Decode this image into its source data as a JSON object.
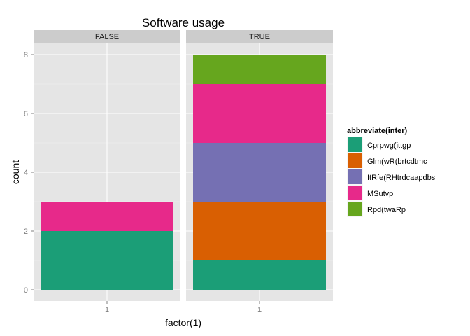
{
  "chart_data": {
    "type": "bar",
    "stacked": true,
    "title": "Software usage",
    "xlabel": "factor(1)",
    "ylabel": "count",
    "ylim": [
      0,
      8
    ],
    "yticks": [
      "0",
      "2",
      "4",
      "6",
      "8"
    ],
    "facets": [
      {
        "label": "FALSE",
        "categories": [
          "1"
        ],
        "stack": [
          {
            "series": "Cprpwg(ittgp",
            "value": 2
          },
          {
            "series": "MSutvp",
            "value": 1
          }
        ]
      },
      {
        "label": "TRUE",
        "categories": [
          "1"
        ],
        "stack": [
          {
            "series": "Cprpwg(ittgp",
            "value": 1
          },
          {
            "series": "Glm(wR(brtcdtmc",
            "value": 2
          },
          {
            "series": "ItRfe(RHtrdcaapdbs",
            "value": 2
          },
          {
            "series": "MSutvp",
            "value": 2
          },
          {
            "series": "Rpd(twaRp",
            "value": 1
          }
        ]
      }
    ],
    "legend": {
      "title": "abbreviate(inter)",
      "position": "right",
      "entries": [
        {
          "name": "Cprpwg(ittgp",
          "color": "#1b9e77"
        },
        {
          "name": "Glm(wR(brtcdtmc",
          "color": "#d95f02"
        },
        {
          "name": "ItRfe(RHtrdcaapdbs",
          "color": "#7570b3"
        },
        {
          "name": "MSutvp",
          "color": "#e7298a"
        },
        {
          "name": "Rpd(twaRp",
          "color": "#66a61e"
        }
      ]
    },
    "grid": true
  }
}
